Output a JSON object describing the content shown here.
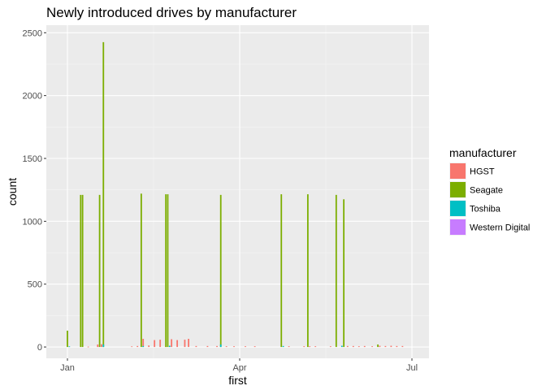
{
  "chart_data": {
    "type": "bar",
    "title": "Newly introduced drives by manufacturer",
    "xlabel": "first",
    "ylabel": "count",
    "x_axis": {
      "type": "date",
      "range": [
        "2016-01-01",
        "2016-07-04"
      ],
      "ticks": [
        {
          "date": "2016-01-01",
          "label": "Jan"
        },
        {
          "date": "2016-04-01",
          "label": "Apr"
        },
        {
          "date": "2016-07-01",
          "label": "Jul"
        }
      ]
    },
    "ylim": [
      -90,
      2560
    ],
    "y_ticks": [
      {
        "value": 0,
        "label": "0"
      },
      {
        "value": 500,
        "label": "500"
      },
      {
        "value": 1000,
        "label": "1000"
      },
      {
        "value": 1500,
        "label": "1500"
      },
      {
        "value": 2000,
        "label": "2000"
      },
      {
        "value": 2500,
        "label": "2500"
      }
    ],
    "grid": true,
    "legend": {
      "title": "manufacturer",
      "position": "right",
      "entries": [
        {
          "name": "HGST",
          "color": "#F8766D"
        },
        {
          "name": "Seagate",
          "color": "#7CAE00"
        },
        {
          "name": "Toshiba",
          "color": "#00BFC4"
        },
        {
          "name": "Western Digital",
          "color": "#C77CFF"
        }
      ]
    },
    "series": [
      {
        "name": "HGST",
        "color": "#F8766D",
        "points": [
          {
            "date": "2016-01-12",
            "count": 3
          },
          {
            "date": "2016-01-17",
            "count": 20
          },
          {
            "date": "2016-01-19",
            "count": 22
          },
          {
            "date": "2016-02-04",
            "count": 5
          },
          {
            "date": "2016-02-07",
            "count": 8
          },
          {
            "date": "2016-02-10",
            "count": 65
          },
          {
            "date": "2016-02-13",
            "count": 12
          },
          {
            "date": "2016-02-16",
            "count": 55
          },
          {
            "date": "2016-02-19",
            "count": 58
          },
          {
            "date": "2016-02-22",
            "count": 8
          },
          {
            "date": "2016-02-25",
            "count": 62
          },
          {
            "date": "2016-02-28",
            "count": 55
          },
          {
            "date": "2016-03-03",
            "count": 58
          },
          {
            "date": "2016-03-05",
            "count": 65
          },
          {
            "date": "2016-03-09",
            "count": 8
          },
          {
            "date": "2016-03-15",
            "count": 8
          },
          {
            "date": "2016-03-20",
            "count": 8
          },
          {
            "date": "2016-03-25",
            "count": 6
          },
          {
            "date": "2016-03-29",
            "count": 6
          },
          {
            "date": "2016-04-04",
            "count": 6
          },
          {
            "date": "2016-04-09",
            "count": 6
          },
          {
            "date": "2016-04-27",
            "count": 6
          },
          {
            "date": "2016-05-05",
            "count": 6
          },
          {
            "date": "2016-05-08",
            "count": 6
          },
          {
            "date": "2016-05-11",
            "count": 6
          },
          {
            "date": "2016-05-19",
            "count": 6
          },
          {
            "date": "2016-05-28",
            "count": 8
          },
          {
            "date": "2016-05-31",
            "count": 8
          },
          {
            "date": "2016-06-03",
            "count": 6
          },
          {
            "date": "2016-06-06",
            "count": 8
          },
          {
            "date": "2016-06-10",
            "count": 6
          },
          {
            "date": "2016-06-14",
            "count": 10
          },
          {
            "date": "2016-06-17",
            "count": 8
          },
          {
            "date": "2016-06-20",
            "count": 10
          },
          {
            "date": "2016-06-23",
            "count": 8
          },
          {
            "date": "2016-06-26",
            "count": 8
          }
        ]
      },
      {
        "name": "Seagate",
        "color": "#7CAE00",
        "points": [
          {
            "date": "2016-01-01",
            "count": 130
          },
          {
            "date": "2016-01-08",
            "count": 1210
          },
          {
            "date": "2016-01-09",
            "count": 1210
          },
          {
            "date": "2016-01-18",
            "count": 1210
          },
          {
            "date": "2016-01-20",
            "count": 2425
          },
          {
            "date": "2016-02-09",
            "count": 1220
          },
          {
            "date": "2016-02-22",
            "count": 1215
          },
          {
            "date": "2016-02-23",
            "count": 1215
          },
          {
            "date": "2016-03-22",
            "count": 1210
          },
          {
            "date": "2016-04-23",
            "count": 1215
          },
          {
            "date": "2016-05-07",
            "count": 1215
          },
          {
            "date": "2016-05-22",
            "count": 1210
          },
          {
            "date": "2016-05-26",
            "count": 1175
          },
          {
            "date": "2016-06-13",
            "count": 20
          }
        ]
      },
      {
        "name": "Toshiba",
        "color": "#00BFC4",
        "points": [
          {
            "date": "2016-01-02",
            "count": 5
          },
          {
            "date": "2016-01-20",
            "count": 20
          },
          {
            "date": "2016-02-10",
            "count": 8
          },
          {
            "date": "2016-02-24",
            "count": 10
          },
          {
            "date": "2016-03-22",
            "count": 20
          },
          {
            "date": "2016-04-24",
            "count": 8
          },
          {
            "date": "2016-05-25",
            "count": 10
          }
        ]
      },
      {
        "name": "Western Digital",
        "color": "#C77CFF",
        "points": []
      }
    ]
  }
}
